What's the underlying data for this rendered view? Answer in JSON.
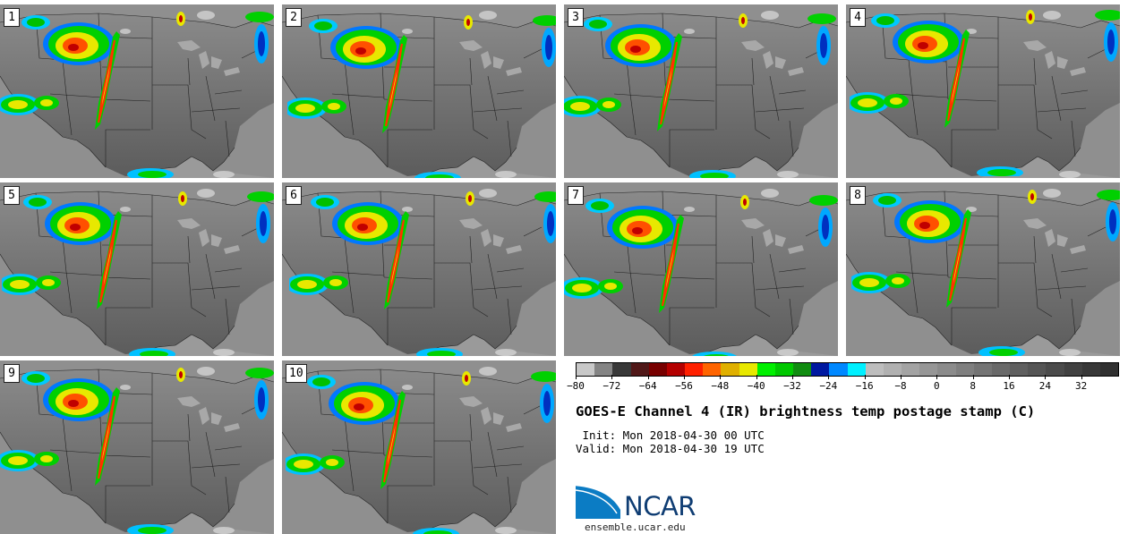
{
  "panels": [
    {
      "label": "1"
    },
    {
      "label": "2"
    },
    {
      "label": "3"
    },
    {
      "label": "4"
    },
    {
      "label": "5"
    },
    {
      "label": "6"
    },
    {
      "label": "7"
    },
    {
      "label": "8"
    },
    {
      "label": "9"
    },
    {
      "label": "10"
    }
  ],
  "colorbar": {
    "colors": [
      "#c8c8c8",
      "#848484",
      "#383838",
      "#501818",
      "#780000",
      "#b40000",
      "#ff2000",
      "#ff6400",
      "#e0b000",
      "#e8e800",
      "#00f000",
      "#00c800",
      "#108c10",
      "#0018a0",
      "#0088ff",
      "#00f0ff",
      "#bdbdbd",
      "#b0b0b0",
      "#a3a3a3",
      "#969696",
      "#8b8b8b",
      "#7f7f7f",
      "#747474",
      "#696969",
      "#5f5f5f",
      "#555555",
      "#4b4b4b",
      "#414141",
      "#383838",
      "#303030"
    ],
    "min": -80,
    "max": 40,
    "tick_labels": [
      "−80",
      "−72",
      "−64",
      "−56",
      "−48",
      "−40",
      "−32",
      "−24",
      "−16",
      "−8",
      "0",
      "8",
      "16",
      "24",
      "32"
    ],
    "tick_values": [
      -80,
      -72,
      -64,
      -56,
      -48,
      -40,
      -32,
      -24,
      -16,
      -8,
      0,
      8,
      16,
      24,
      32
    ]
  },
  "title": "GOES-E Channel 4 (IR) brightness temp postage stamp (C)",
  "init_line": " Init: Mon 2018-04-30 00 UTC",
  "valid_line": "Valid: Mon 2018-04-30 19 UTC",
  "logo_text": "NCAR",
  "website": "ensemble.ucar.edu"
}
